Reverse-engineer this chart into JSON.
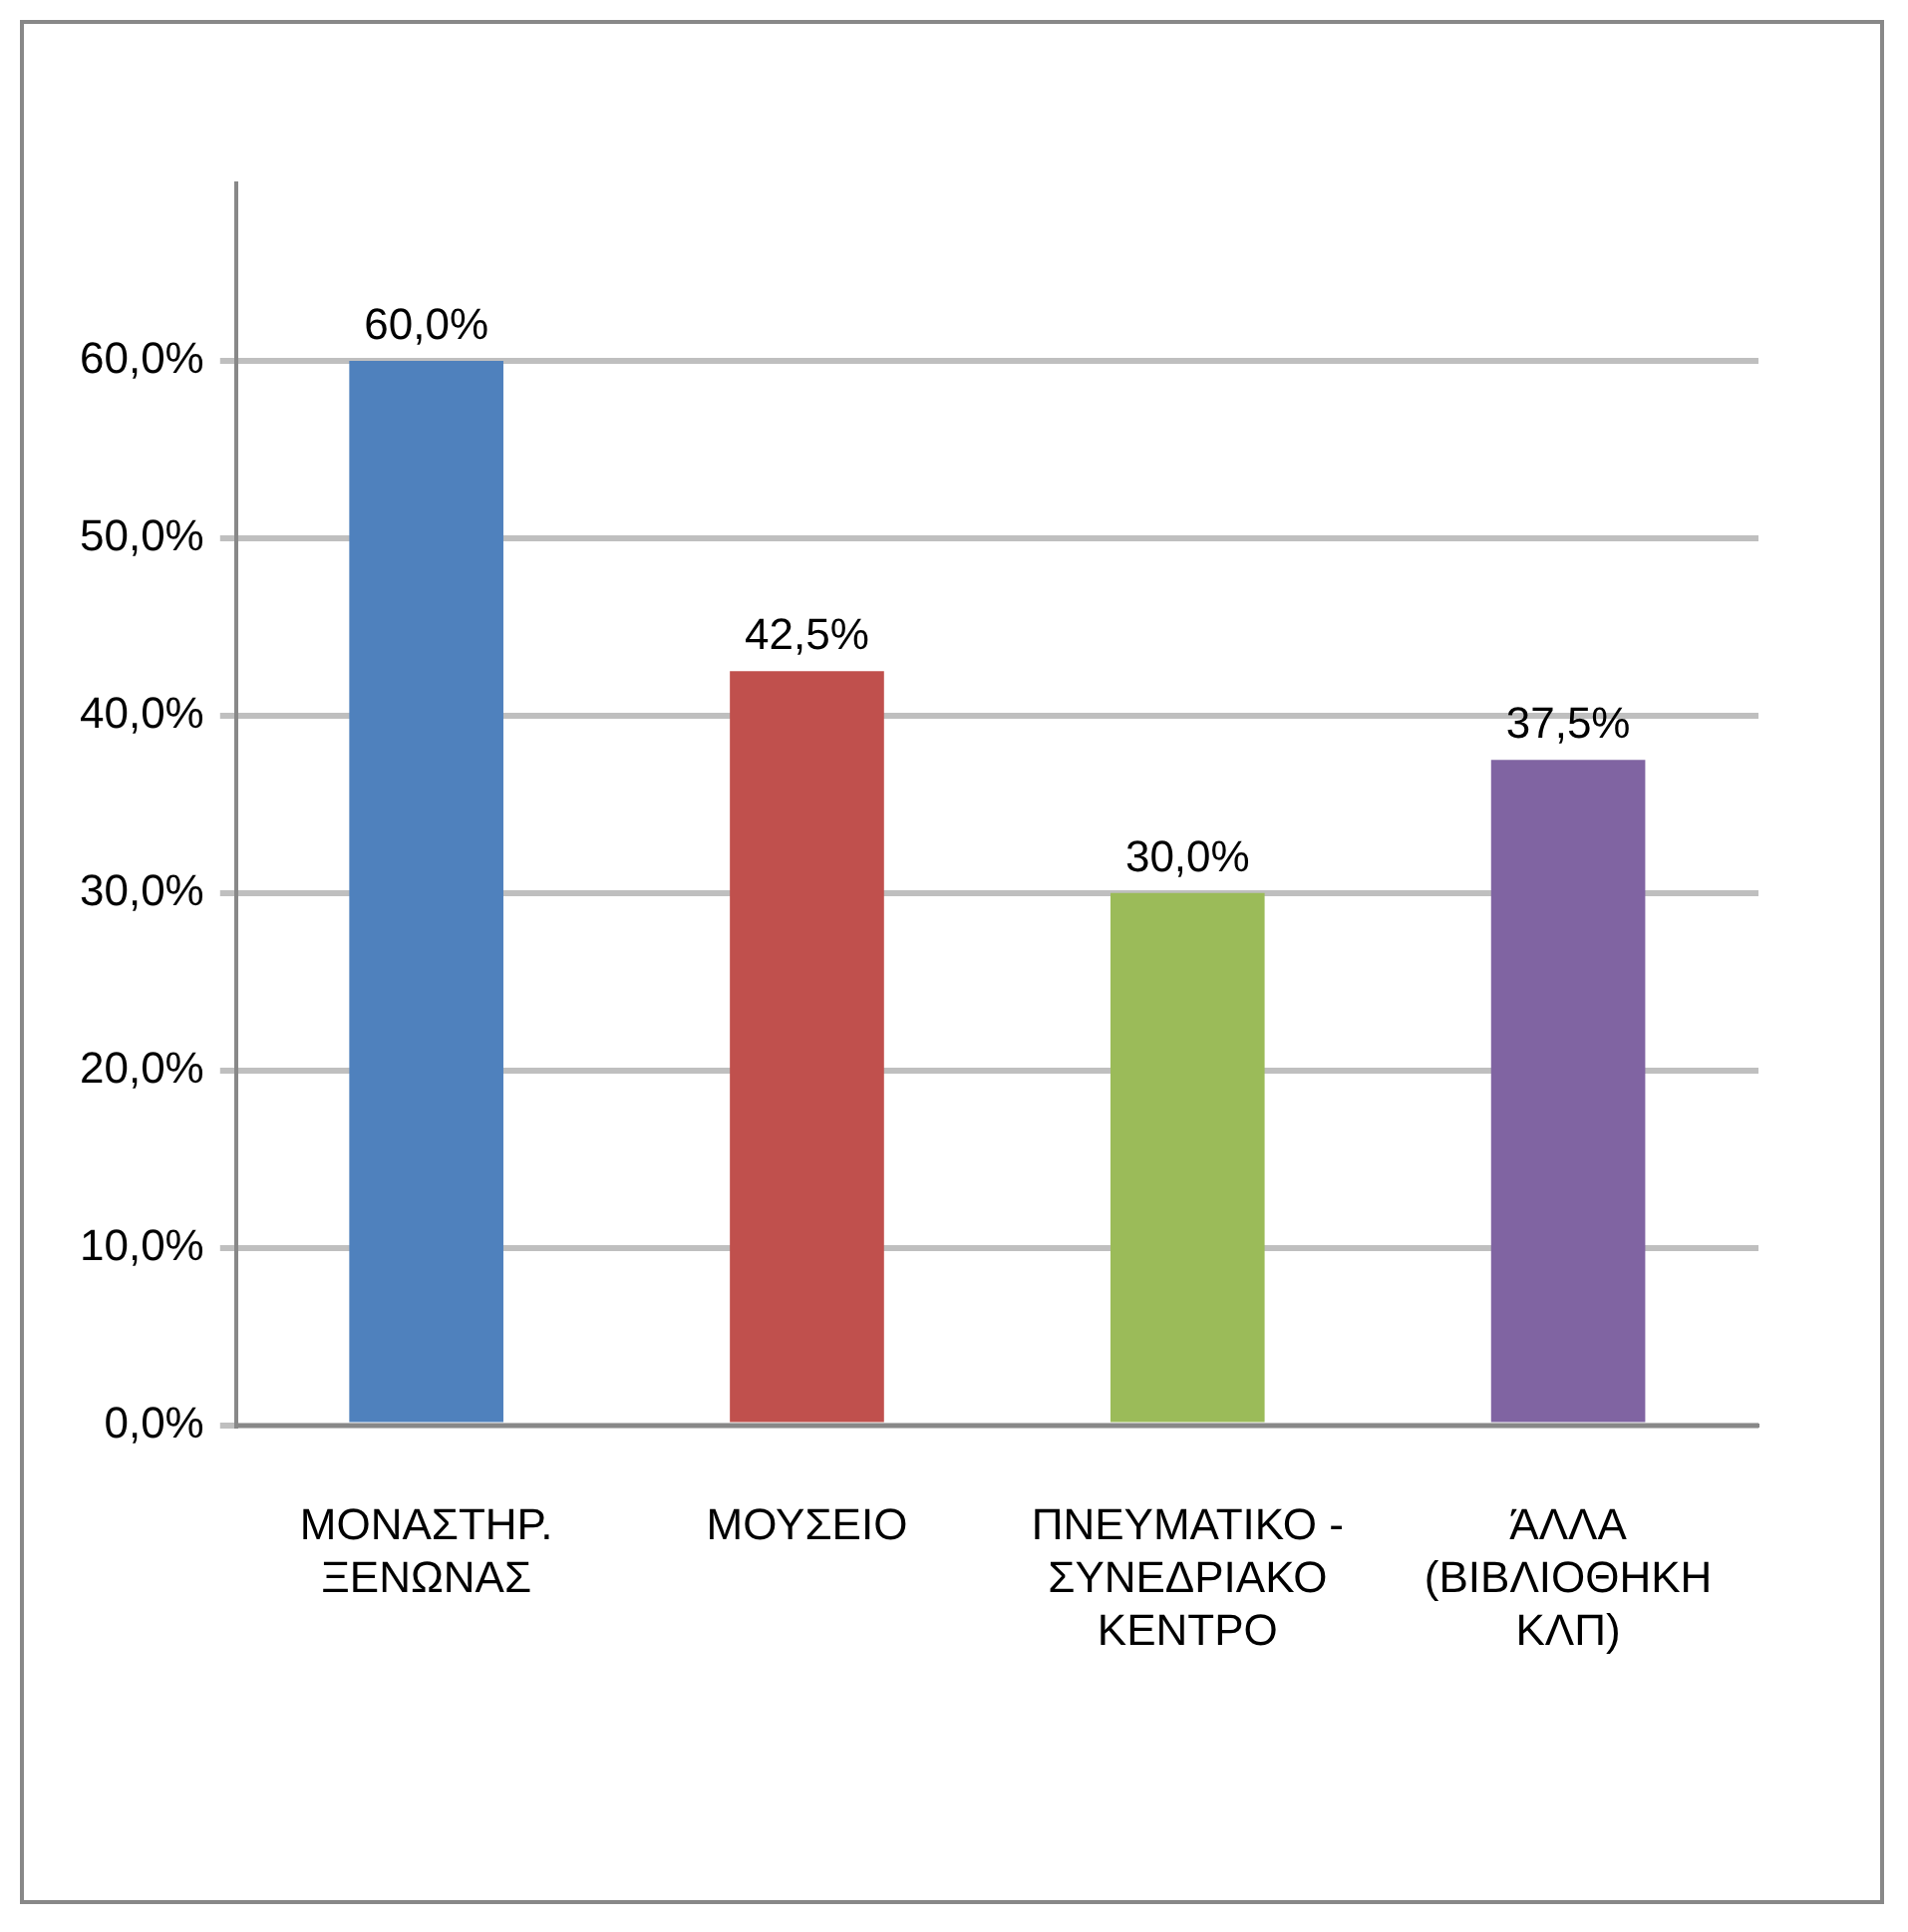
{
  "chart_data": {
    "type": "bar",
    "categories": [
      "ΜΟΝΑΣΤΗΡ.\nΞΕΝΩΝΑΣ",
      "ΜΟΥΣΕΙΟ",
      "ΠΝΕΥΜΑΤΙΚΟ -\nΣΥΝΕΔΡΙΑΚΟ\nΚΕΝΤΡΟ",
      "ΆΛΛΑ\n(ΒΙΒΛΙΟΘΗΚΗ\nΚΛΠ)"
    ],
    "values": [
      60,
      42.5,
      30,
      37.5
    ],
    "colors": [
      "#4f81bd",
      "#c0504d",
      "#9bbb59",
      "#8064a2"
    ],
    "value_labels": [
      "60,0%",
      "42,5%",
      "30,0%",
      "37,5%"
    ],
    "ylim": [
      0,
      70
    ],
    "yticks": [
      {
        "value": 0,
        "label": "0,0%"
      },
      {
        "value": 10,
        "label": "10,0%"
      },
      {
        "value": 20,
        "label": "20,0%"
      },
      {
        "value": 30,
        "label": "30,0%"
      },
      {
        "value": 40,
        "label": "40,0%"
      },
      {
        "value": 50,
        "label": "50,0%"
      },
      {
        "value": 60,
        "label": "60,0%"
      }
    ],
    "grid": "y",
    "legend": false
  }
}
